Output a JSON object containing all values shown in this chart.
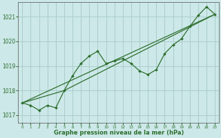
{
  "xlabel": "Graphe pression niveau de la mer (hPa)",
  "background_color": "#cce8e8",
  "grid_color": "#aacccc",
  "line_color": "#2d6e2d",
  "x_ticks": [
    0,
    1,
    2,
    3,
    4,
    5,
    6,
    7,
    8,
    9,
    10,
    11,
    12,
    13,
    14,
    15,
    16,
    17,
    18,
    19,
    20,
    21,
    22,
    23
  ],
  "ylim": [
    1016.7,
    1021.6
  ],
  "yticks": [
    1017,
    1018,
    1019,
    1020,
    1021
  ],
  "series1_x": [
    0,
    1,
    2,
    3,
    4,
    5,
    6,
    7,
    8,
    9,
    10,
    11,
    12,
    13,
    14,
    15,
    16,
    17,
    18,
    19,
    20,
    21,
    22,
    23
  ],
  "series1_y": [
    1017.5,
    1017.4,
    1017.2,
    1017.4,
    1017.3,
    1018.0,
    1018.6,
    1019.1,
    1019.4,
    1019.6,
    1019.1,
    1019.2,
    1019.3,
    1019.1,
    1018.8,
    1018.65,
    1018.85,
    1019.5,
    1019.85,
    1020.1,
    1020.6,
    1021.05,
    1021.4,
    1021.1
  ],
  "series2_x": [
    0,
    23
  ],
  "series2_y": [
    1017.5,
    1021.1
  ],
  "series3_x": [
    0,
    5,
    23
  ],
  "series3_y": [
    1017.5,
    1018.0,
    1021.1
  ],
  "figwidth": 3.2,
  "figheight": 2.0,
  "dpi": 100
}
